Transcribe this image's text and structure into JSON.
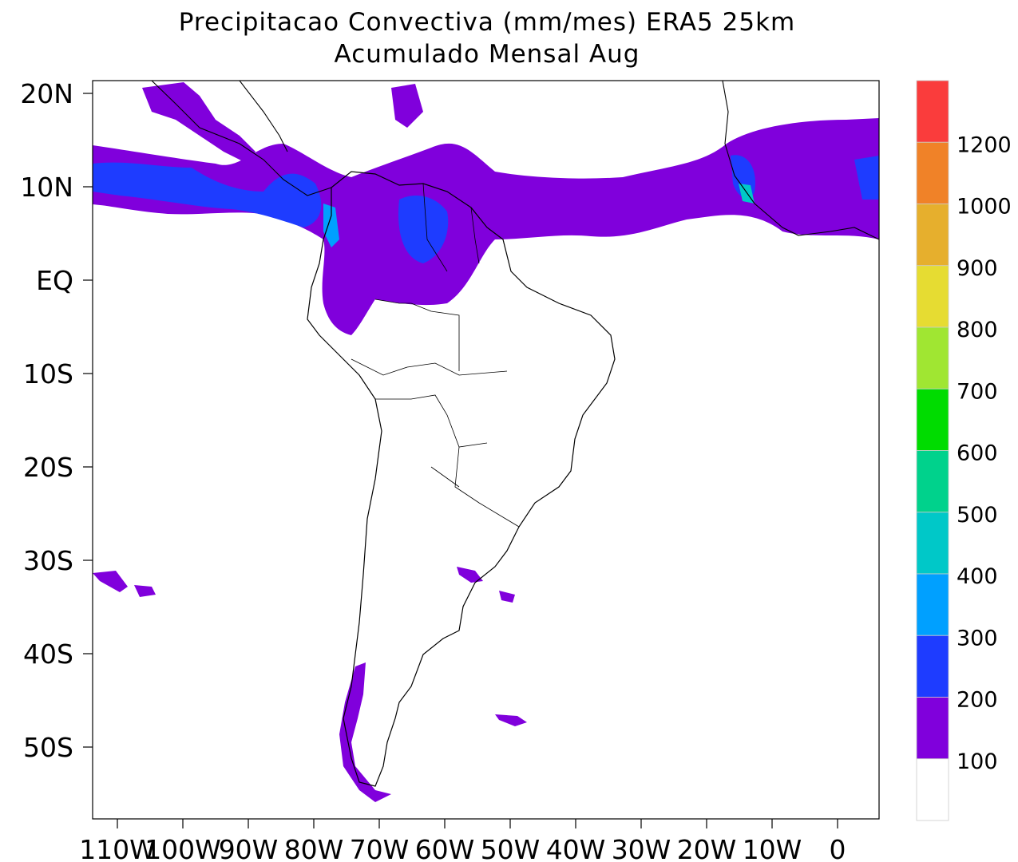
{
  "title": "Precipitacao Convectiva (mm/mes) ERA5  25km",
  "subtitle": "Acumulado Mensal Aug",
  "y_axis": {
    "ticks": [
      "20N",
      "10N",
      "EQ",
      "10S",
      "20S",
      "30S",
      "40S",
      "50S"
    ]
  },
  "x_axis": {
    "ticks": [
      "110W",
      "100W",
      "90W",
      "80W",
      "70W",
      "60W",
      "50W",
      "40W",
      "30W",
      "20W",
      "10W",
      "0"
    ]
  },
  "colorbar": {
    "labels": [
      "100",
      "200",
      "300",
      "400",
      "500",
      "600",
      "700",
      "800",
      "900",
      "1000",
      "1200"
    ],
    "colors": [
      "#ffffff",
      "#8000dc",
      "#1e3cff",
      "#00a0ff",
      "#00c8c8",
      "#00d28c",
      "#00dc00",
      "#a0e632",
      "#e6dc32",
      "#e6af2d",
      "#f08228",
      "#fa3c3c"
    ]
  },
  "map": {
    "region": "South America",
    "lon_range": [
      -114,
      6.5
    ],
    "lat_range": [
      -57,
      21
    ]
  }
}
